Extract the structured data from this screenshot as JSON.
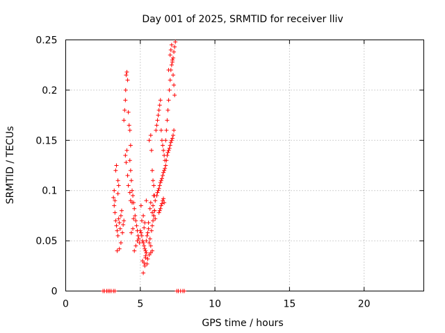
{
  "chart_data": {
    "type": "scatter",
    "title": "Day 001 of 2025, SRMTID for receiver lliv",
    "xlabel": "GPS time / hours",
    "ylabel": "SRMTID / TECUs",
    "xlim": [
      0,
      24
    ],
    "ylim": [
      0,
      0.25
    ],
    "xticks": [
      0,
      5,
      10,
      15,
      20
    ],
    "xtick_labels": [
      "0",
      "5",
      "10",
      "15",
      "20"
    ],
    "yticks": [
      0,
      0.05,
      0.1,
      0.15,
      0.2,
      0.25
    ],
    "ytick_labels": [
      "0",
      "0.05",
      "0.1",
      "0.15",
      "0.2",
      "0.25"
    ],
    "grid": true,
    "marker": "+",
    "color": "#ff0000",
    "series": [
      {
        "name": "SRMTID",
        "x": [
          2.5,
          2.6,
          2.75,
          2.85,
          2.95,
          3.05,
          3.2,
          3.3,
          7.45,
          7.55,
          7.7,
          7.85,
          7.95,
          3.2,
          3.25,
          3.3,
          3.35,
          3.4,
          3.45,
          3.5,
          3.55,
          3.6,
          3.65,
          3.7,
          3.75,
          3.8,
          3.85,
          3.9,
          3.35,
          3.4,
          3.5,
          3.55,
          3.45,
          3.6,
          3.7,
          3.3,
          3.25,
          3.5,
          3.9,
          3.95,
          4.0,
          4.02,
          4.05,
          4.1,
          4.15,
          4.2,
          4.25,
          4.3,
          4.0,
          4.05,
          4.1,
          4.15,
          4.2,
          4.3,
          4.35,
          4.3,
          4.35,
          4.4,
          4.45,
          4.5,
          4.55,
          4.6,
          4.65,
          4.7,
          4.75,
          4.8,
          4.85,
          4.9,
          4.95,
          4.4,
          4.5,
          4.6,
          4.7,
          4.8,
          4.35,
          4.45,
          4.55,
          5.0,
          5.05,
          5.1,
          5.15,
          5.2,
          5.25,
          5.3,
          5.35,
          5.4,
          5.45,
          5.5,
          5.55,
          5.6,
          5.65,
          5.7,
          5.75,
          5.8,
          5.85,
          5.9,
          5.95,
          5.1,
          5.2,
          5.3,
          5.25,
          5.35,
          5.15,
          5.45,
          5.5,
          5.6,
          5.7,
          5.8,
          5.05,
          5.4,
          5.9,
          5.2,
          5.3,
          5.25,
          5.35,
          5.4,
          5.6,
          5.7,
          5.75,
          5.8,
          5.85,
          5.9,
          5.95,
          6.0,
          5.65,
          5.8,
          5.85,
          5.7,
          5.9,
          6.0,
          5.55,
          5.95,
          6.05,
          6.1,
          6.15,
          6.2,
          6.25,
          6.3,
          6.35,
          6.4,
          6.45,
          6.5,
          6.55,
          6.6,
          6.65,
          6.7,
          6.1,
          6.2,
          6.3,
          6.4,
          6.5,
          6.6,
          6.15,
          6.25,
          6.35,
          6.45,
          6.55,
          6.65,
          6.3,
          6.4,
          6.5,
          6.6,
          6.35,
          6.45,
          6.55,
          6.25,
          6.7,
          6.75,
          6.8,
          6.85,
          6.9,
          6.95,
          7.0,
          7.05,
          7.1,
          7.15,
          7.2,
          7.25,
          7.3,
          6.8,
          6.9,
          7.0,
          7.1,
          7.2,
          6.75,
          6.85,
          6.95,
          7.05,
          7.15,
          7.25,
          7.0,
          7.05,
          7.1,
          7.15,
          7.2,
          7.25,
          7.3,
          6.9,
          7.35
        ],
        "y": [
          0,
          0,
          0,
          0,
          0,
          0,
          0,
          0,
          0,
          0,
          0,
          0,
          0,
          0.093,
          0.085,
          0.078,
          0.07,
          0.065,
          0.06,
          0.055,
          0.072,
          0.068,
          0.062,
          0.075,
          0.08,
          0.058,
          0.066,
          0.07,
          0.12,
          0.125,
          0.11,
          0.105,
          0.04,
          0.042,
          0.048,
          0.09,
          0.1,
          0.097,
          0.17,
          0.18,
          0.19,
          0.2,
          0.215,
          0.218,
          0.21,
          0.178,
          0.165,
          0.16,
          0.135,
          0.128,
          0.14,
          0.115,
          0.105,
          0.098,
          0.09,
          0.13,
          0.12,
          0.11,
          0.1,
          0.095,
          0.088,
          0.082,
          0.075,
          0.07,
          0.065,
          0.06,
          0.055,
          0.052,
          0.048,
          0.058,
          0.062,
          0.04,
          0.045,
          0.05,
          0.145,
          0.088,
          0.072,
          0.06,
          0.058,
          0.055,
          0.05,
          0.048,
          0.045,
          0.042,
          0.04,
          0.05,
          0.055,
          0.058,
          0.062,
          0.048,
          0.052,
          0.045,
          0.06,
          0.065,
          0.07,
          0.075,
          0.08,
          0.07,
          0.075,
          0.068,
          0.063,
          0.035,
          0.03,
          0.027,
          0.032,
          0.036,
          0.038,
          0.04,
          0.085,
          0.09,
          0.095,
          0.018,
          0.025,
          0.028,
          0.033,
          0.038,
          0.15,
          0.155,
          0.14,
          0.12,
          0.11,
          0.105,
          0.095,
          0.09,
          0.082,
          0.078,
          0.085,
          0.088,
          0.075,
          0.072,
          0.068,
          0.08,
          0.16,
          0.165,
          0.17,
          0.175,
          0.18,
          0.185,
          0.19,
          0.16,
          0.15,
          0.145,
          0.14,
          0.135,
          0.13,
          0.125,
          0.095,
          0.1,
          0.105,
          0.11,
          0.115,
          0.12,
          0.098,
          0.102,
          0.108,
          0.112,
          0.118,
          0.122,
          0.08,
          0.085,
          0.09,
          0.088,
          0.082,
          0.087,
          0.092,
          0.078,
          0.15,
          0.16,
          0.17,
          0.18,
          0.19,
          0.2,
          0.21,
          0.22,
          0.225,
          0.23,
          0.215,
          0.205,
          0.195,
          0.135,
          0.14,
          0.145,
          0.15,
          0.155,
          0.13,
          0.138,
          0.142,
          0.148,
          0.152,
          0.16,
          0.235,
          0.24,
          0.245,
          0.228,
          0.232,
          0.238,
          0.243,
          0.22,
          0.248
        ]
      }
    ]
  }
}
